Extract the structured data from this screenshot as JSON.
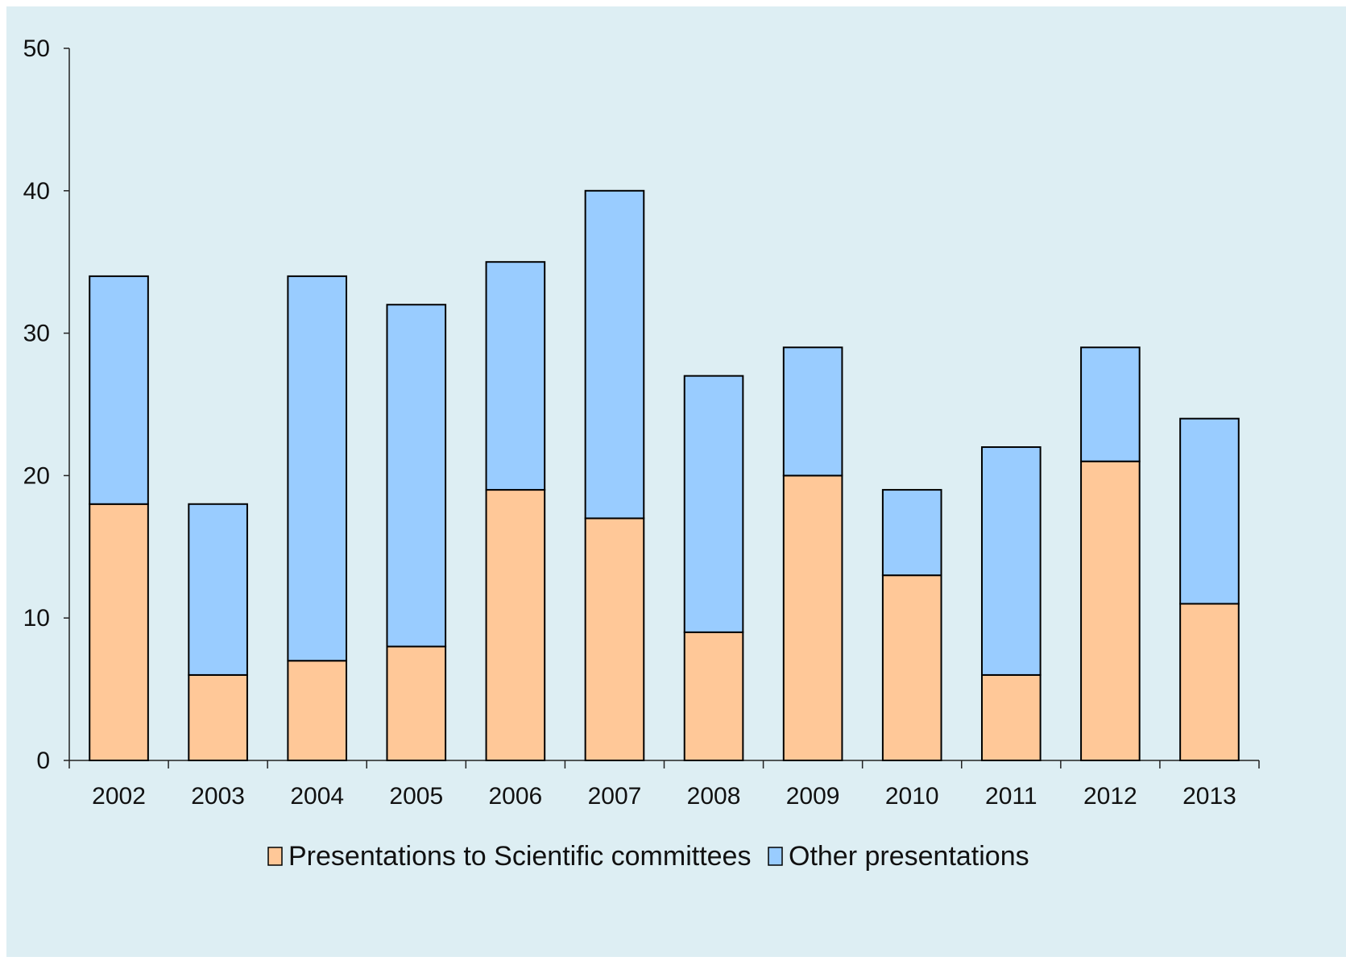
{
  "chart_data": {
    "type": "bar",
    "stacked": true,
    "categories": [
      "2002",
      "2003",
      "2004",
      "2005",
      "2006",
      "2007",
      "2008",
      "2009",
      "2010",
      "2011",
      "2012",
      "2013"
    ],
    "series": [
      {
        "name": "Presentations to Scientific committees",
        "color": "#FFC898",
        "values": [
          18,
          6,
          7,
          8,
          19,
          17,
          9,
          20,
          13,
          6,
          21,
          11
        ]
      },
      {
        "name": "Other presentations",
        "color": "#99CCFF",
        "values": [
          16,
          12,
          27,
          24,
          16,
          23,
          18,
          9,
          6,
          16,
          8,
          13
        ]
      }
    ],
    "title": "",
    "xlabel": "",
    "ylabel": "",
    "ylim": [
      0,
      50
    ],
    "yticks": [
      0,
      10,
      20,
      30,
      40,
      50
    ],
    "grid": false,
    "legend_position": "bottom",
    "background_color": "#DDEEF3",
    "axis_color": "#222222"
  }
}
